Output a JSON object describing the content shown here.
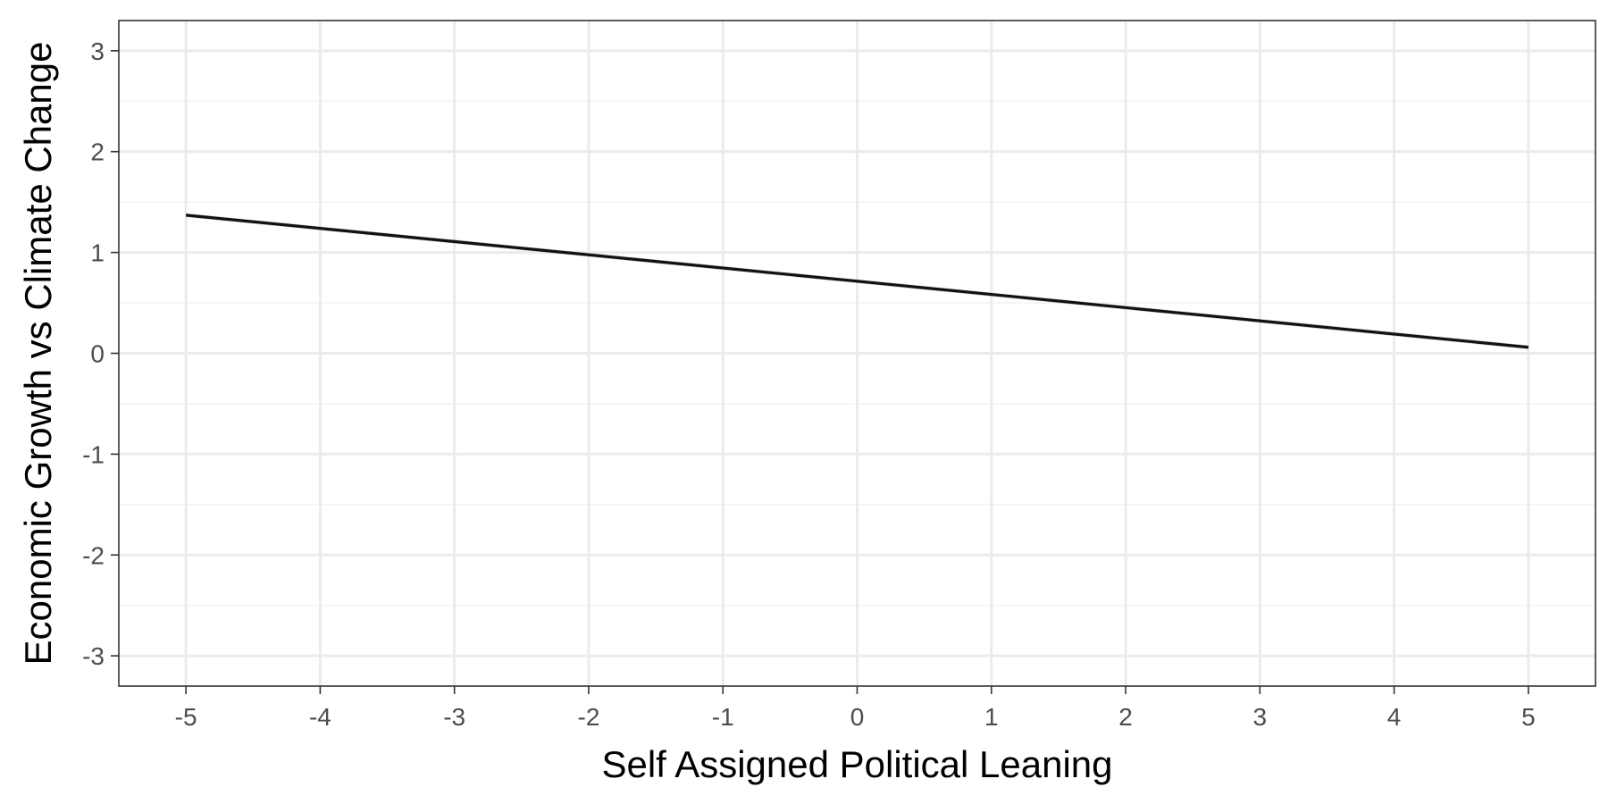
{
  "chart_data": {
    "type": "line",
    "title": "",
    "xlabel": "Self Assigned Political Leaning",
    "ylabel": "Economic Growth vs Climate Change",
    "xlim": [
      -5.5,
      5.5
    ],
    "ylim": [
      -3.3,
      3.3
    ],
    "x_ticks": [
      -5,
      -4,
      -3,
      -2,
      -1,
      0,
      1,
      2,
      3,
      4,
      5
    ],
    "x_tick_labels": [
      "-5",
      "-4",
      "-3",
      "-2",
      "-1",
      "0",
      "1",
      "2",
      "3",
      "4",
      "5"
    ],
    "y_ticks": [
      -3,
      -2,
      -1,
      0,
      1,
      2,
      3
    ],
    "y_tick_labels": [
      "-3",
      "-2",
      "-1",
      "0",
      "1",
      "2",
      "3"
    ],
    "y_minor_ticks": [
      -2.5,
      -1.5,
      -0.5,
      0.5,
      1.5,
      2.5
    ],
    "grid": true,
    "legend": "none",
    "series": [
      {
        "x": [
          -5,
          5
        ],
        "y": [
          1.37,
          0.06
        ],
        "color": "#111111",
        "ribbon_lower": [
          1.35,
          0.04
        ],
        "ribbon_upper": [
          1.39,
          0.08
        ],
        "ribbon_color": "#999999"
      }
    ],
    "colors": {
      "background": "#ffffff",
      "grid_major": "#ebebeb",
      "grid_minor": "#f3f3f3",
      "panel_border": "#333333",
      "tick_mark": "#333333"
    }
  }
}
